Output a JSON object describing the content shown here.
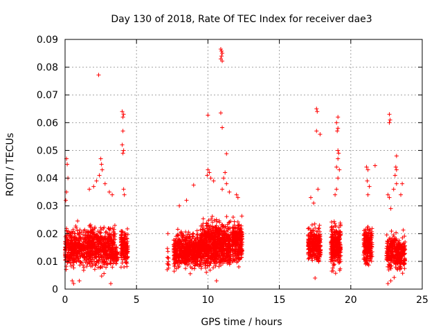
{
  "chart_data": {
    "type": "scatter",
    "title": "Day 130 of 2018, Rate Of TEC Index for receiver dae3",
    "xlabel": "GPS time / hours",
    "ylabel": "ROTI / TECUs",
    "xlim": [
      0,
      25
    ],
    "ylim": [
      0,
      0.09
    ],
    "x_ticks": [
      0,
      5,
      10,
      15,
      20,
      25
    ],
    "x_tick_labels": [
      "0",
      "5",
      "10",
      "15",
      "20",
      "25"
    ],
    "y_ticks": [
      0,
      0.01,
      0.02,
      0.03,
      0.04,
      0.05,
      0.06,
      0.07,
      0.08,
      0.09
    ],
    "y_tick_labels": [
      "0",
      "0.01",
      "0.02",
      "0.03",
      "0.04",
      "0.05",
      "0.06",
      "0.07",
      "0.08",
      "0.09"
    ],
    "grid": true,
    "marker": "+",
    "color": "#ff0000",
    "dense_segments": [
      {
        "x_start": 0.0,
        "x_end": 3.5,
        "y_center": 0.015,
        "y_spread": 0.007,
        "count": 900
      },
      {
        "x_start": 3.5,
        "x_end": 3.7,
        "y_center": 0.012,
        "y_spread": 0.003,
        "count": 40
      },
      {
        "x_start": 3.9,
        "x_end": 4.4,
        "y_center": 0.015,
        "y_spread": 0.006,
        "count": 160
      },
      {
        "x_start": 7.1,
        "x_end": 7.3,
        "y_center": 0.012,
        "y_spread": 0.004,
        "count": 10
      },
      {
        "x_start": 7.6,
        "x_end": 9.5,
        "y_center": 0.014,
        "y_spread": 0.006,
        "count": 600
      },
      {
        "x_start": 9.5,
        "x_end": 11.6,
        "y_center": 0.016,
        "y_spread": 0.008,
        "count": 800
      },
      {
        "x_start": 11.7,
        "x_end": 12.4,
        "y_center": 0.017,
        "y_spread": 0.007,
        "count": 260
      },
      {
        "x_start": 17.0,
        "x_end": 17.9,
        "y_center": 0.016,
        "y_spread": 0.006,
        "count": 300
      },
      {
        "x_start": 18.6,
        "x_end": 19.3,
        "y_center": 0.016,
        "y_spread": 0.008,
        "count": 300
      },
      {
        "x_start": 20.9,
        "x_end": 21.5,
        "y_center": 0.016,
        "y_spread": 0.007,
        "count": 200
      },
      {
        "x_start": 22.5,
        "x_end": 23.8,
        "y_center": 0.013,
        "y_spread": 0.006,
        "count": 350
      }
    ],
    "outliers": [
      {
        "x": 0.1,
        "y": 0.047
      },
      {
        "x": 0.15,
        "y": 0.045
      },
      {
        "x": 0.2,
        "y": 0.04
      },
      {
        "x": 0.1,
        "y": 0.035
      },
      {
        "x": 0.05,
        "y": 0.032
      },
      {
        "x": 2.35,
        "y": 0.0772
      },
      {
        "x": 2.5,
        "y": 0.047
      },
      {
        "x": 2.55,
        "y": 0.045
      },
      {
        "x": 2.6,
        "y": 0.043
      },
      {
        "x": 2.4,
        "y": 0.041
      },
      {
        "x": 2.2,
        "y": 0.039
      },
      {
        "x": 2.8,
        "y": 0.038
      },
      {
        "x": 2.0,
        "y": 0.037
      },
      {
        "x": 1.7,
        "y": 0.036
      },
      {
        "x": 3.1,
        "y": 0.035
      },
      {
        "x": 3.3,
        "y": 0.034
      },
      {
        "x": 4.0,
        "y": 0.064
      },
      {
        "x": 4.05,
        "y": 0.062
      },
      {
        "x": 4.1,
        "y": 0.063
      },
      {
        "x": 4.05,
        "y": 0.057
      },
      {
        "x": 4.0,
        "y": 0.052
      },
      {
        "x": 4.05,
        "y": 0.049
      },
      {
        "x": 4.1,
        "y": 0.05
      },
      {
        "x": 4.1,
        "y": 0.036
      },
      {
        "x": 4.15,
        "y": 0.034
      },
      {
        "x": 7.2,
        "y": 0.02
      },
      {
        "x": 7.15,
        "y": 0.007
      },
      {
        "x": 9.0,
        "y": 0.0375
      },
      {
        "x": 8.5,
        "y": 0.032
      },
      {
        "x": 8.0,
        "y": 0.03
      },
      {
        "x": 10.0,
        "y": 0.0627
      },
      {
        "x": 10.0,
        "y": 0.043
      },
      {
        "x": 10.1,
        "y": 0.042
      },
      {
        "x": 9.95,
        "y": 0.041
      },
      {
        "x": 10.2,
        "y": 0.04
      },
      {
        "x": 10.4,
        "y": 0.039
      },
      {
        "x": 10.9,
        "y": 0.0865
      },
      {
        "x": 10.95,
        "y": 0.0858
      },
      {
        "x": 11.0,
        "y": 0.085
      },
      {
        "x": 10.95,
        "y": 0.084
      },
      {
        "x": 10.9,
        "y": 0.083
      },
      {
        "x": 11.0,
        "y": 0.0822
      },
      {
        "x": 10.9,
        "y": 0.0635
      },
      {
        "x": 11.0,
        "y": 0.0582
      },
      {
        "x": 11.3,
        "y": 0.0488
      },
      {
        "x": 11.2,
        "y": 0.042
      },
      {
        "x": 11.1,
        "y": 0.04
      },
      {
        "x": 11.3,
        "y": 0.038
      },
      {
        "x": 11.0,
        "y": 0.036
      },
      {
        "x": 11.5,
        "y": 0.035
      },
      {
        "x": 12.0,
        "y": 0.034
      },
      {
        "x": 12.1,
        "y": 0.033
      },
      {
        "x": 17.6,
        "y": 0.065
      },
      {
        "x": 17.65,
        "y": 0.064
      },
      {
        "x": 17.6,
        "y": 0.057
      },
      {
        "x": 17.85,
        "y": 0.0558
      },
      {
        "x": 17.7,
        "y": 0.036
      },
      {
        "x": 17.2,
        "y": 0.033
      },
      {
        "x": 17.4,
        "y": 0.031
      },
      {
        "x": 19.1,
        "y": 0.062
      },
      {
        "x": 19.0,
        "y": 0.06
      },
      {
        "x": 19.1,
        "y": 0.058
      },
      {
        "x": 19.05,
        "y": 0.057
      },
      {
        "x": 19.1,
        "y": 0.05
      },
      {
        "x": 19.15,
        "y": 0.049
      },
      {
        "x": 19.1,
        "y": 0.047
      },
      {
        "x": 19.0,
        "y": 0.044
      },
      {
        "x": 19.2,
        "y": 0.043
      },
      {
        "x": 19.1,
        "y": 0.04
      },
      {
        "x": 19.0,
        "y": 0.036
      },
      {
        "x": 18.9,
        "y": 0.034
      },
      {
        "x": 21.1,
        "y": 0.044
      },
      {
        "x": 21.2,
        "y": 0.043
      },
      {
        "x": 21.7,
        "y": 0.0445
      },
      {
        "x": 21.15,
        "y": 0.039
      },
      {
        "x": 21.3,
        "y": 0.037
      },
      {
        "x": 21.2,
        "y": 0.034
      },
      {
        "x": 22.7,
        "y": 0.063
      },
      {
        "x": 22.75,
        "y": 0.061
      },
      {
        "x": 22.7,
        "y": 0.06
      },
      {
        "x": 23.2,
        "y": 0.048
      },
      {
        "x": 23.15,
        "y": 0.044
      },
      {
        "x": 23.2,
        "y": 0.043
      },
      {
        "x": 23.1,
        "y": 0.041
      },
      {
        "x": 23.2,
        "y": 0.038
      },
      {
        "x": 23.0,
        "y": 0.036
      },
      {
        "x": 23.6,
        "y": 0.038
      },
      {
        "x": 23.5,
        "y": 0.034
      },
      {
        "x": 22.7,
        "y": 0.033
      },
      {
        "x": 22.6,
        "y": 0.034
      },
      {
        "x": 22.8,
        "y": 0.029
      },
      {
        "x": 0.5,
        "y": 0.003
      },
      {
        "x": 0.6,
        "y": 0.002
      },
      {
        "x": 1.0,
        "y": 0.003
      },
      {
        "x": 3.2,
        "y": 0.002
      },
      {
        "x": 22.6,
        "y": 0.002
      },
      {
        "x": 22.8,
        "y": 0.003
      },
      {
        "x": 17.5,
        "y": 0.004
      },
      {
        "x": 10.6,
        "y": 0.003
      }
    ]
  }
}
